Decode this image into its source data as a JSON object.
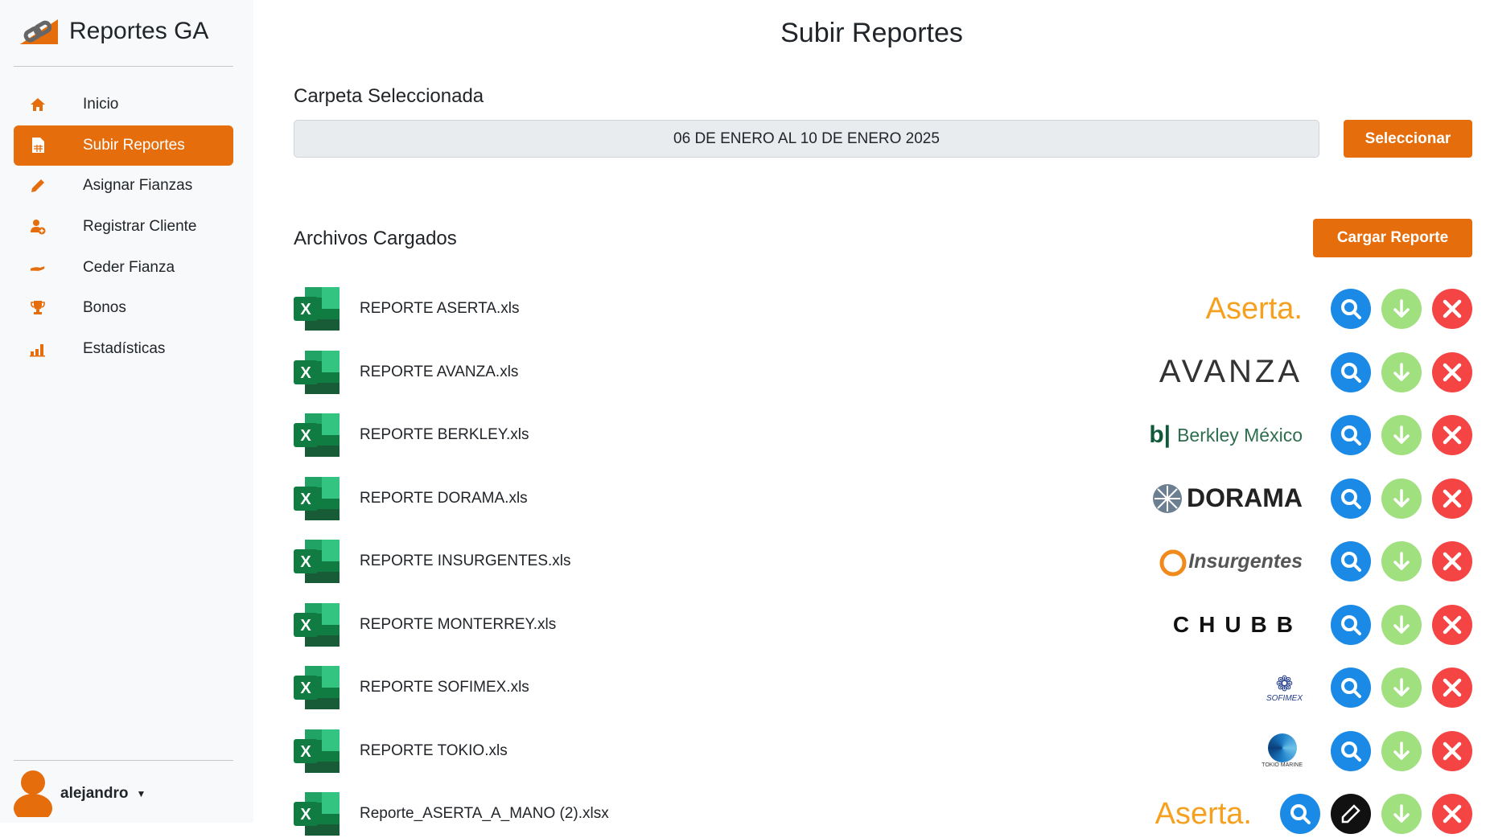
{
  "app": {
    "title": "Reportes GA"
  },
  "sidebar": {
    "items": [
      {
        "label": "Inicio",
        "icon": "home-icon",
        "active": false
      },
      {
        "label": "Subir Reportes",
        "icon": "file-spreadsheet-icon",
        "active": true
      },
      {
        "label": "Asignar Fianzas",
        "icon": "pencil-icon",
        "active": false
      },
      {
        "label": "Registrar Cliente",
        "icon": "user-plus-icon",
        "active": false
      },
      {
        "label": "Ceder Fianza",
        "icon": "hand-icon",
        "active": false
      },
      {
        "label": "Bonos",
        "icon": "trophy-icon",
        "active": false
      },
      {
        "label": "Estadísticas",
        "icon": "bar-chart-icon",
        "active": false
      }
    ],
    "user": "alejandro"
  },
  "main": {
    "title": "Subir Reportes",
    "folder_label": "Carpeta Seleccionada",
    "folder_value": "06 DE ENERO AL 10 DE ENERO 2025",
    "select_button": "Seleccionar",
    "files_label": "Archivos Cargados",
    "upload_button": "Cargar Reporte",
    "files": [
      {
        "name": "REPORTE ASERTA.xls",
        "logo": "Aserta."
      },
      {
        "name": "REPORTE AVANZA.xls",
        "logo": "AVANZA"
      },
      {
        "name": "REPORTE BERKLEY.xls",
        "logo": "Berkley México"
      },
      {
        "name": "REPORTE DORAMA.xls",
        "logo": "DORAMA"
      },
      {
        "name": "REPORTE INSURGENTES.xls",
        "logo": "Insurgentes"
      },
      {
        "name": "REPORTE MONTERREY.xls",
        "logo": "CHUBB"
      },
      {
        "name": "REPORTE SOFIMEX.xls",
        "logo": "SOFIMEX"
      },
      {
        "name": "REPORTE TOKIO.xls",
        "logo": "TOKIO MARINE"
      },
      {
        "name": "Reporte_ASERTA_A_MANO (2).xlsx",
        "logo": "Aserta.",
        "editable": true
      }
    ]
  },
  "colors": {
    "accent": "#e56d0c",
    "search": "#1a8ae6",
    "download": "#a0e07f",
    "delete": "#f44444"
  }
}
